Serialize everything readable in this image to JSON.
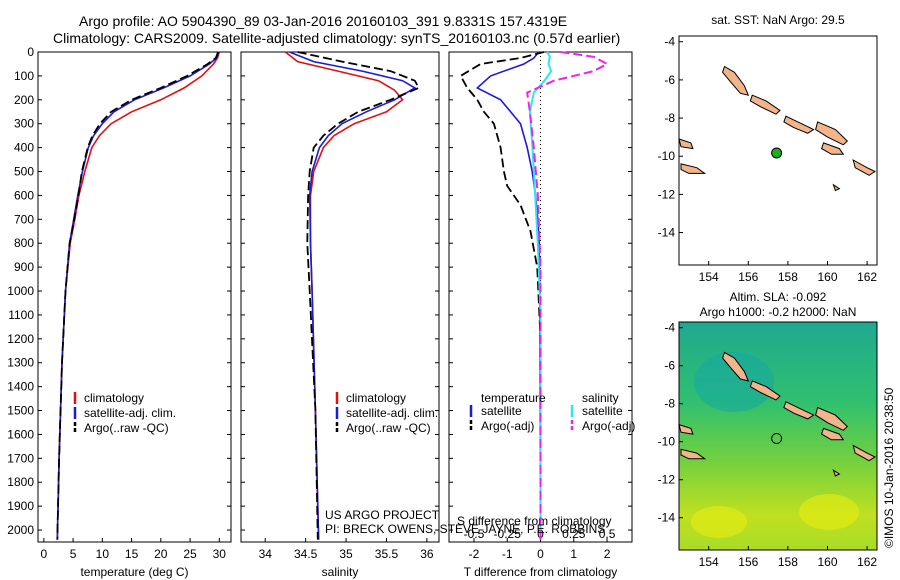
{
  "header": {
    "line1": "Argo profile: AO 5904390_89 03-Jan-2016 20160103_391 9.8331S 157.4319E",
    "line2": "Climatology: CARS2009. Satellite-adjusted climatology: synTS_20160103.nc (0.57d earlier)"
  },
  "credits": {
    "project": "US ARGO PROJECT",
    "pi": "PI: BRECK OWENS, STEVE JAYNE, P.E. ROBBINS"
  },
  "imos_label": "©IMOS 10-Jan-2016 20:38:50",
  "colors": {
    "climatology": "#e01010",
    "satellite": "#1a1adc",
    "argo": "#000000",
    "sal_satellite": "#28e8f0",
    "sal_argo": "#ee22ee",
    "land": "#f2b48a"
  },
  "depth_axis": {
    "range": [
      0,
      2050
    ],
    "ticks": [
      0,
      100,
      200,
      300,
      400,
      500,
      600,
      700,
      800,
      900,
      1000,
      1100,
      1200,
      1300,
      1400,
      1500,
      1600,
      1700,
      1800,
      1900,
      2000
    ]
  },
  "chart_data": [
    {
      "type": "line",
      "id": "temperature",
      "xlabel": "temperature (deg C)",
      "xlim": [
        -1,
        32
      ],
      "xticks": [
        0,
        5,
        10,
        15,
        20,
        25,
        30
      ],
      "legend": [
        "climatology",
        "satellite-adj. clim.",
        "Argo(..raw -QC)"
      ],
      "series": [
        {
          "name": "climatology",
          "x": [
            30.0,
            29.7,
            29.0,
            27.0,
            24.0,
            20.0,
            15.0,
            11.5,
            9.5,
            8.2,
            7.0,
            6.0,
            5.3,
            4.5,
            3.7,
            3.1,
            2.6,
            2.3
          ],
          "y": [
            0,
            25,
            50,
            100,
            150,
            200,
            250,
            300,
            350,
            400,
            500,
            600,
            700,
            800,
            1000,
            1300,
            1700,
            2040
          ]
        },
        {
          "name": "satellite-adj. clim.",
          "x": [
            29.9,
            29.5,
            28.3,
            25.0,
            20.5,
            15.5,
            12.0,
            10.0,
            8.5,
            7.6,
            6.6,
            5.8,
            5.1,
            4.4,
            3.7,
            3.1,
            2.6,
            2.3
          ],
          "y": [
            0,
            25,
            50,
            100,
            150,
            200,
            250,
            300,
            350,
            400,
            500,
            600,
            700,
            800,
            1000,
            1300,
            1700,
            2040
          ]
        },
        {
          "name": "Argo(..raw -QC)",
          "x": [
            29.8,
            29.4,
            28.0,
            24.5,
            20.0,
            15.0,
            11.5,
            9.6,
            8.3,
            7.5,
            6.5,
            5.9,
            5.2,
            4.4,
            3.7,
            3.1,
            2.6,
            2.3
          ],
          "y": [
            0,
            25,
            50,
            100,
            150,
            200,
            250,
            300,
            350,
            400,
            500,
            600,
            700,
            800,
            1000,
            1300,
            1700,
            2040
          ]
        }
      ]
    },
    {
      "type": "line",
      "id": "salinity",
      "xlabel": "salinity",
      "xlim": [
        33.7,
        36.15
      ],
      "xticks": [
        34,
        34.5,
        35,
        35.5,
        36
      ],
      "legend": [
        "climatology",
        "satellite-adj. clim.",
        "Argo(..raw -QC)"
      ],
      "series": [
        {
          "name": "climatology",
          "x": [
            34.25,
            34.4,
            34.9,
            35.4,
            35.6,
            35.7,
            35.5,
            35.1,
            34.85,
            34.72,
            34.6,
            34.56,
            34.56,
            34.58,
            34.62,
            34.66
          ],
          "y": [
            0,
            40,
            80,
            120,
            160,
            200,
            250,
            300,
            350,
            400,
            500,
            600,
            800,
            1000,
            1500,
            2040
          ]
        },
        {
          "name": "satellite-adj. clim.",
          "x": [
            34.3,
            34.6,
            35.2,
            35.7,
            35.85,
            35.6,
            35.25,
            34.95,
            34.78,
            34.67,
            34.58,
            34.55,
            34.56,
            34.58,
            34.62,
            34.66
          ],
          "y": [
            0,
            40,
            80,
            120,
            150,
            200,
            250,
            300,
            350,
            400,
            500,
            600,
            800,
            1000,
            1500,
            2040
          ]
        },
        {
          "name": "Argo(..raw -QC)",
          "x": [
            34.4,
            34.95,
            35.55,
            35.85,
            35.9,
            35.55,
            35.15,
            34.9,
            34.72,
            34.6,
            34.55,
            34.53,
            34.52,
            34.55,
            34.62,
            34.65
          ],
          "y": [
            0,
            40,
            80,
            120,
            150,
            200,
            250,
            300,
            350,
            400,
            500,
            600,
            800,
            1000,
            1500,
            2040
          ]
        }
      ]
    },
    {
      "type": "line",
      "id": "difference",
      "xlabel": "T difference from climatology",
      "top_label": "S difference from climatology",
      "xlim": [
        -2.75,
        2.75
      ],
      "xticks": [
        -2,
        -1,
        0,
        1,
        2
      ],
      "sal_ticks": [
        -0.5,
        -0.25,
        0,
        0.25,
        0.5
      ],
      "legend_title_temperature": "temperature",
      "legend_title_salinity": "salinity",
      "legend": [
        "satellite",
        "Argo(-adj)",
        "satellite",
        "Argo(-adj)"
      ],
      "series": [
        {
          "name": "temperature satellite",
          "x": [
            -0.05,
            -0.2,
            -0.5,
            -1.5,
            -1.9,
            -1.2,
            -0.9,
            -0.6,
            -0.4,
            -0.25,
            -0.15,
            -0.08,
            -0.04,
            -0.02,
            0.0
          ],
          "y": [
            0,
            25,
            50,
            100,
            150,
            200,
            250,
            300,
            400,
            500,
            600,
            700,
            800,
            1000,
            2040
          ]
        },
        {
          "name": "temperature Argo(-adj)",
          "x": [
            0.1,
            -0.6,
            -1.8,
            -2.4,
            -2.2,
            -1.9,
            -1.7,
            -1.4,
            -1.2,
            -1.1,
            -1.0,
            -0.6,
            -0.3,
            -0.1,
            0.0,
            0.0
          ],
          "y": [
            0,
            25,
            50,
            100,
            150,
            200,
            250,
            300,
            400,
            500,
            560,
            640,
            750,
            900,
            1200,
            2040
          ]
        },
        {
          "name": "salinity satellite",
          "x": [
            0.05,
            0.07,
            0.06,
            0.08,
            0.03,
            -0.05,
            -0.08,
            -0.06,
            -0.04,
            -0.02,
            0.0,
            0.0
          ],
          "y": [
            0,
            20,
            50,
            80,
            120,
            170,
            250,
            400,
            600,
            800,
            1100,
            2040
          ]
        },
        {
          "name": "salinity Argo(-adj)",
          "x": [
            0.15,
            0.4,
            0.5,
            0.4,
            0.1,
            -0.1,
            -0.08,
            -0.05,
            -0.02,
            0.0,
            0.0
          ],
          "y": [
            0,
            20,
            50,
            80,
            120,
            170,
            250,
            400,
            600,
            900,
            2040
          ]
        }
      ]
    }
  ],
  "map_top": {
    "title": "sat. SST: NaN Argo: 29.5",
    "lon_ticks": [
      154,
      156,
      158,
      160,
      162
    ],
    "lat_ticks": [
      -4,
      -6,
      -8,
      -10,
      -12,
      -14
    ],
    "lon_range": [
      152.5,
      162.5
    ],
    "lat_range": [
      -15.7,
      -3.7
    ],
    "marker": {
      "lon": 157.43,
      "lat": -9.83
    }
  },
  "map_bottom": {
    "title": "Altim. SLA: -0.092",
    "subtitle": "Argo h1000: -0.2 h2000: NaN",
    "lon_ticks": [
      154,
      156,
      158,
      160,
      162
    ],
    "lat_ticks": [
      -4,
      -6,
      -8,
      -10,
      -12,
      -14
    ],
    "lon_range": [
      152.5,
      162.5
    ],
    "lat_range": [
      -15.7,
      -3.7
    ],
    "marker": {
      "lon": 157.43,
      "lat": -9.83
    }
  }
}
